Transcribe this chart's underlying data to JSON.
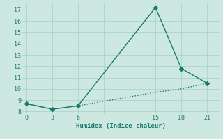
{
  "xlabel": "Humidex (Indice chaleur)",
  "bg_color": "#cce8e0",
  "line_color": "#1a7a6e",
  "grid_color": "#aad4cc",
  "line1_x": [
    0,
    3,
    6,
    15,
    18,
    21
  ],
  "line1_y": [
    8.7,
    8.2,
    8.5,
    17.2,
    11.8,
    10.5
  ],
  "line2_x": [
    0,
    3,
    6,
    15,
    18,
    21
  ],
  "line2_y": [
    8.7,
    8.2,
    8.5,
    9.7,
    10.0,
    10.5
  ],
  "xlim": [
    -0.5,
    22.5
  ],
  "ylim": [
    7.8,
    17.6
  ],
  "xticks": [
    0,
    3,
    6,
    9,
    12,
    15,
    18,
    21
  ],
  "xticklabels": [
    "0",
    "3",
    "6",
    "",
    "",
    "15",
    "18",
    "21"
  ],
  "yticks": [
    8,
    9,
    10,
    11,
    12,
    13,
    14,
    15,
    16,
    17
  ],
  "marker_size": 3,
  "linewidth": 1.0
}
